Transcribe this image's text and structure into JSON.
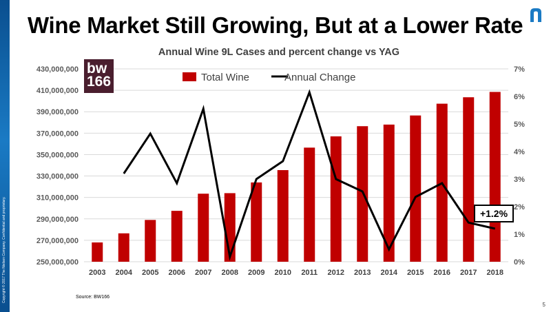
{
  "slide": {
    "title": "Wine Market Still Growing, But at a Lower Rate",
    "page_number": "5",
    "source": "Source: BW166",
    "side_text": "Copyright © 2017 The Nielsen Company. Confidential and proprietary.",
    "badge_text": "bw 166",
    "callout": "+1.2%",
    "accent_color": "#0a4f8f"
  },
  "chart_data": {
    "type": "bar",
    "title": "Annual Wine 9L Cases and percent change vs YAG",
    "categories": [
      "2003",
      "2004",
      "2005",
      "2006",
      "2007",
      "2008",
      "2009",
      "2010",
      "2011",
      "2012",
      "2013",
      "2014",
      "2015",
      "2016",
      "2017",
      "2018"
    ],
    "series": [
      {
        "name": "Total Wine",
        "type": "bar",
        "axis": "left",
        "color": "#c00000",
        "values": [
          268000000,
          276500000,
          289000000,
          297500000,
          313500000,
          314000000,
          324000000,
          335500000,
          356500000,
          367000000,
          376500000,
          378000000,
          386500000,
          397500000,
          403500000,
          408500000
        ]
      },
      {
        "name": "Annual Change",
        "type": "line",
        "axis": "right",
        "color": "#000000",
        "values": [
          null,
          3.2,
          4.65,
          2.85,
          5.55,
          0.18,
          3.0,
          3.65,
          6.15,
          3.0,
          2.55,
          0.45,
          2.35,
          2.85,
          1.42,
          1.2
        ]
      }
    ],
    "y_left": {
      "min": 250000000,
      "max": 430000000,
      "ticks": [
        "250,000,000",
        "270,000,000",
        "290,000,000",
        "310,000,000",
        "330,000,000",
        "350,000,000",
        "370,000,000",
        "390,000,000",
        "410,000,000",
        "430,000,000"
      ],
      "tick_values": [
        250000000,
        270000000,
        290000000,
        310000000,
        330000000,
        350000000,
        370000000,
        390000000,
        410000000,
        430000000
      ]
    },
    "y_right": {
      "min": 0,
      "max": 7,
      "ticks": [
        "0%",
        "1%",
        "2%",
        "3%",
        "4%",
        "5%",
        "6%",
        "7%"
      ],
      "tick_values": [
        0,
        1,
        2,
        3,
        4,
        5,
        6,
        7
      ]
    },
    "legend": {
      "placement": "top-center",
      "items": [
        "Total Wine",
        "Annual Change"
      ]
    },
    "grid": true
  }
}
